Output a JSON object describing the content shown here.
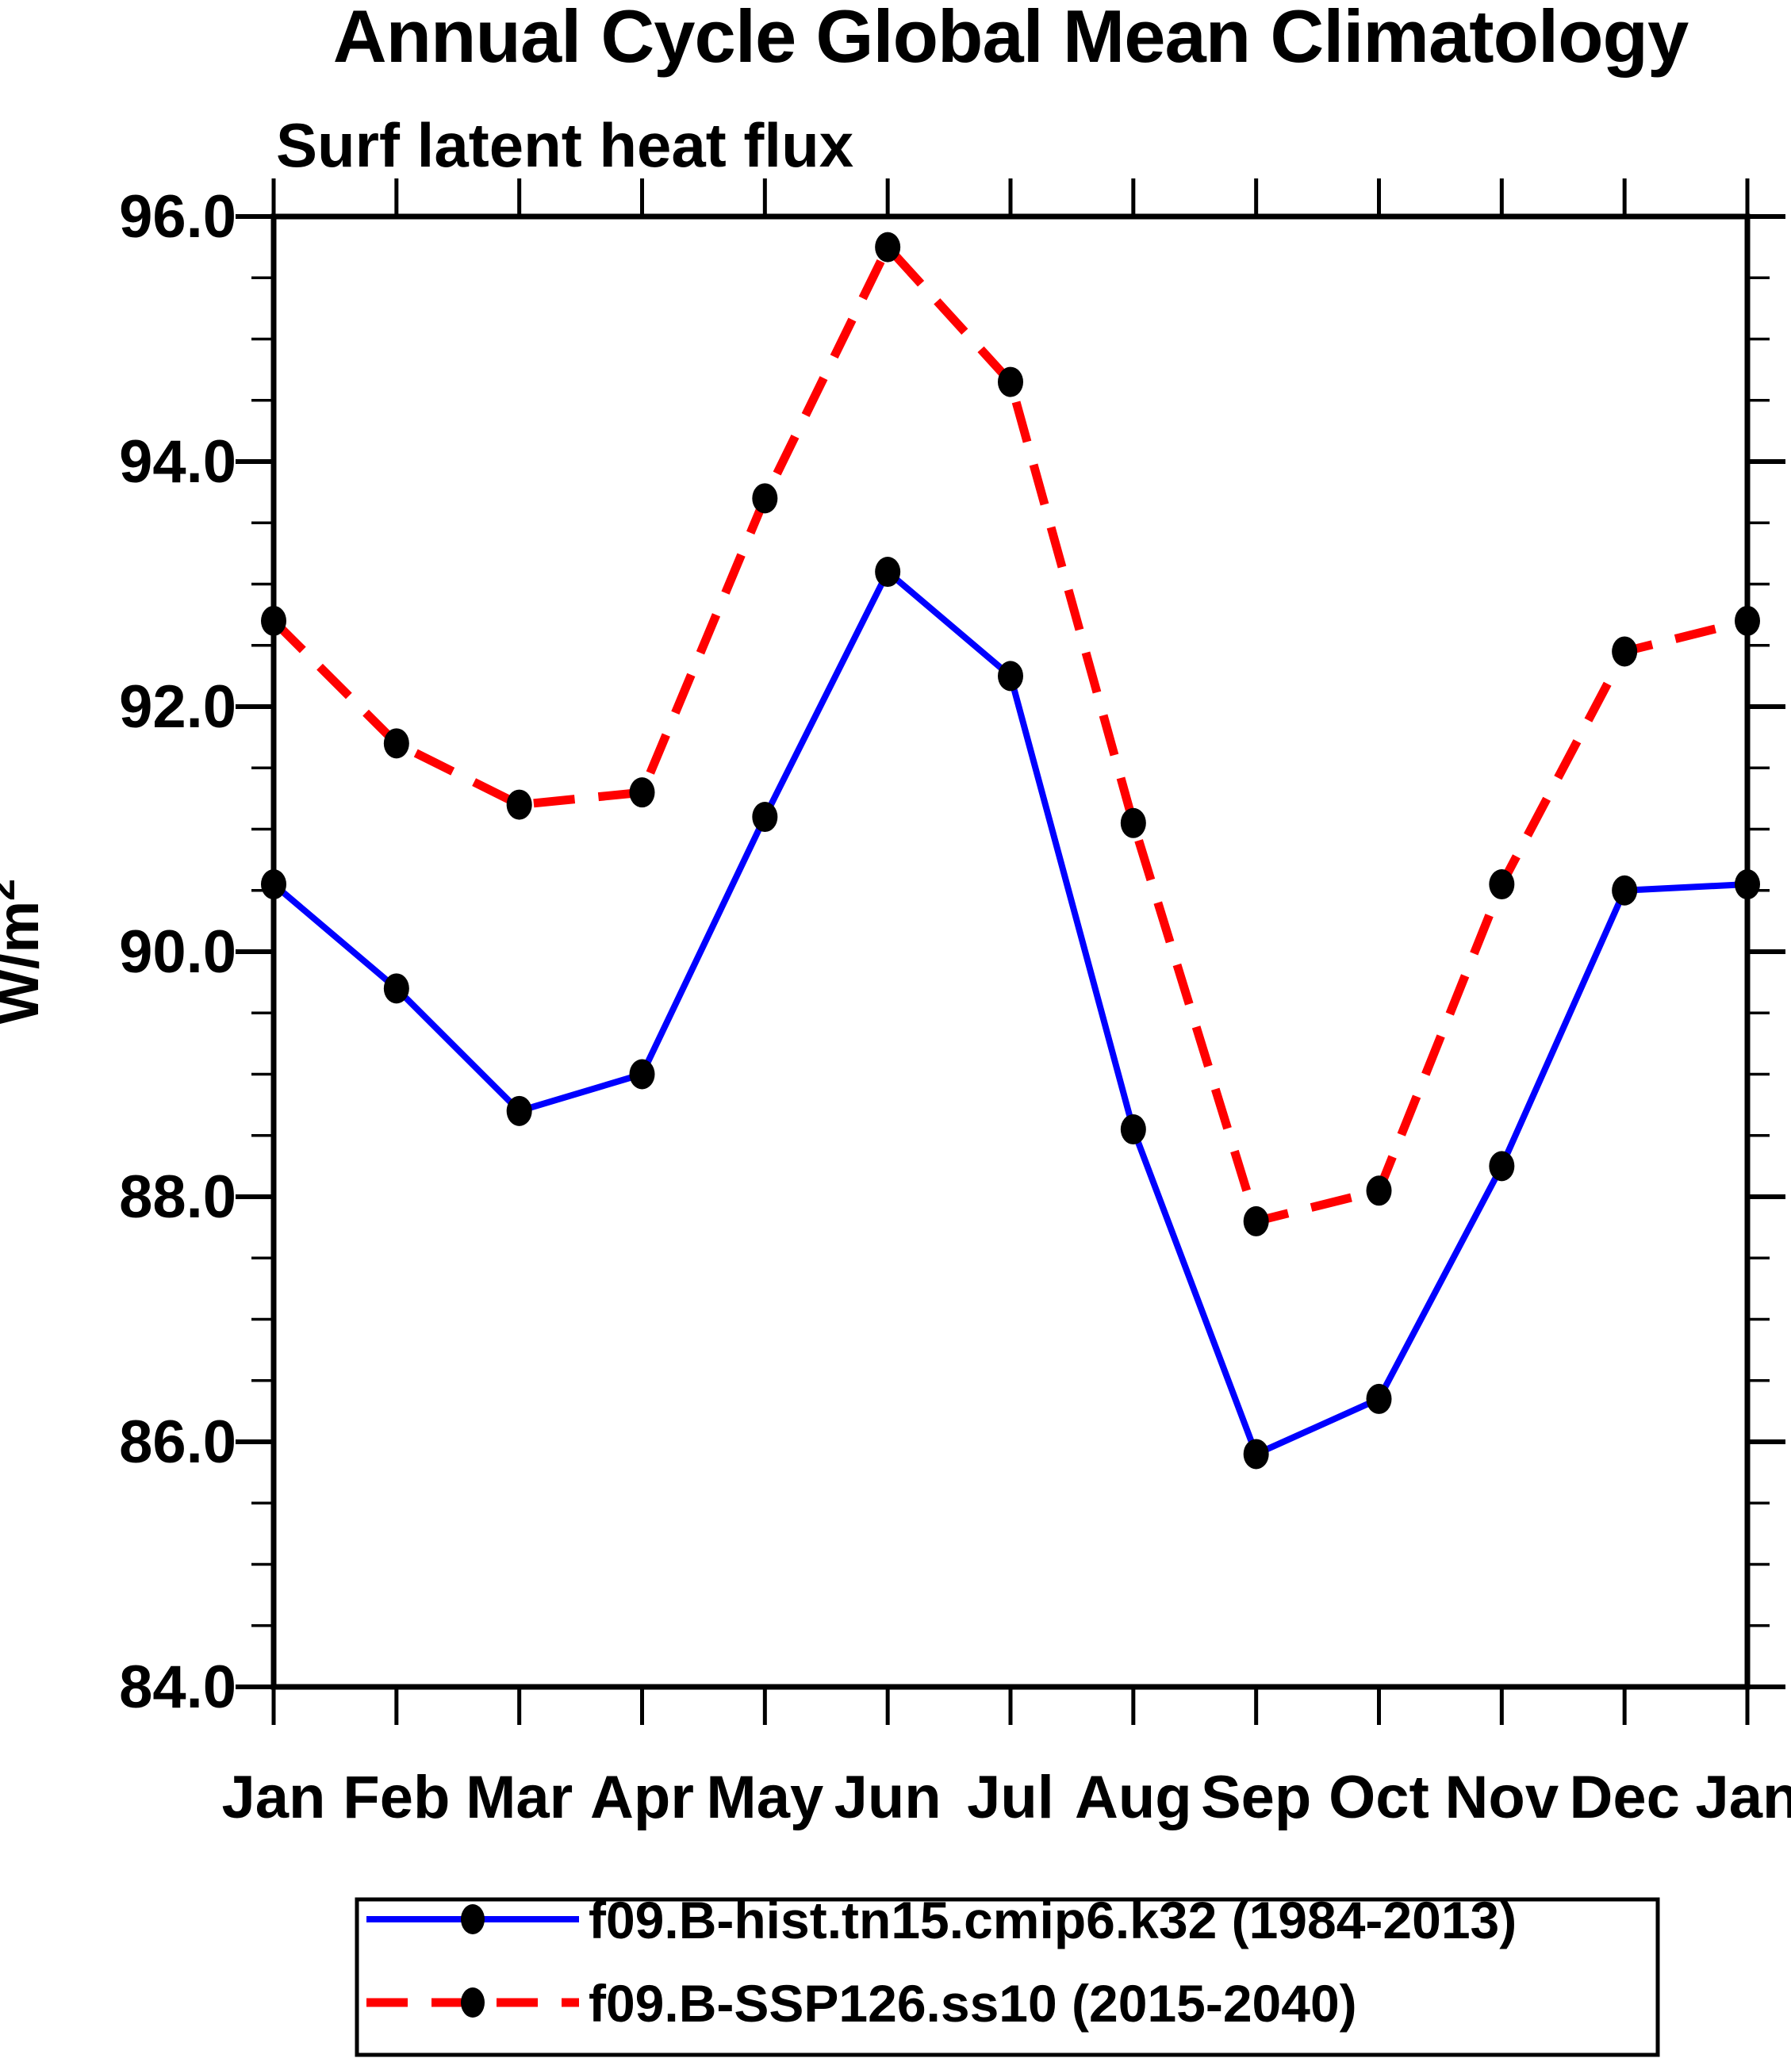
{
  "page_title": "Annual Cycle Global Mean Climatology",
  "chart_data": {
    "type": "line",
    "title": "Annual Cycle Global Mean Climatology",
    "subtitle": "Surf latent heat flux",
    "ylabel": "W/m",
    "ylabel_superscript": "2",
    "x_categories": [
      "Jan",
      "Feb",
      "Mar",
      "Apr",
      "May",
      "Jun",
      "Jul",
      "Aug",
      "Sep",
      "Oct",
      "Nov",
      "Dec",
      "Jan"
    ],
    "ylim": [
      84.0,
      96.0
    ],
    "y_major_ticks": [
      96.0,
      94.0,
      92.0,
      90.0,
      88.0,
      86.0,
      84.0
    ],
    "y_tick_labels": [
      "96.0",
      "94.0",
      "92.0",
      "90.0",
      "88.0",
      "86.0",
      "84.0"
    ],
    "y_minor_step": 0.5,
    "grid": false,
    "legend_position": "bottom",
    "series": [
      {
        "name": "f09.B-hist.tn15.cmip6.k32 (1984-2013)",
        "color": "#0000FF",
        "style": "solid",
        "marker": "circle",
        "marker_color": "#000000",
        "values": [
          90.55,
          89.7,
          88.7,
          89.0,
          91.1,
          93.1,
          92.25,
          88.55,
          85.9,
          86.35,
          88.25,
          90.5,
          90.55
        ]
      },
      {
        "name": "f09.B-SSP126.ss10 (2015-2040)",
        "color": "#FF0000",
        "style": "dashed",
        "marker": "circle",
        "marker_color": "#000000",
        "values": [
          92.7,
          91.7,
          91.2,
          91.3,
          93.7,
          95.75,
          94.65,
          91.05,
          87.8,
          88.05,
          90.55,
          92.45,
          92.7
        ]
      }
    ]
  },
  "colors": {
    "background": "#FFFFFF",
    "axis": "#000000",
    "marker": "#000000",
    "series_hist": "#0000FF",
    "series_ssp126": "#FF0000"
  }
}
